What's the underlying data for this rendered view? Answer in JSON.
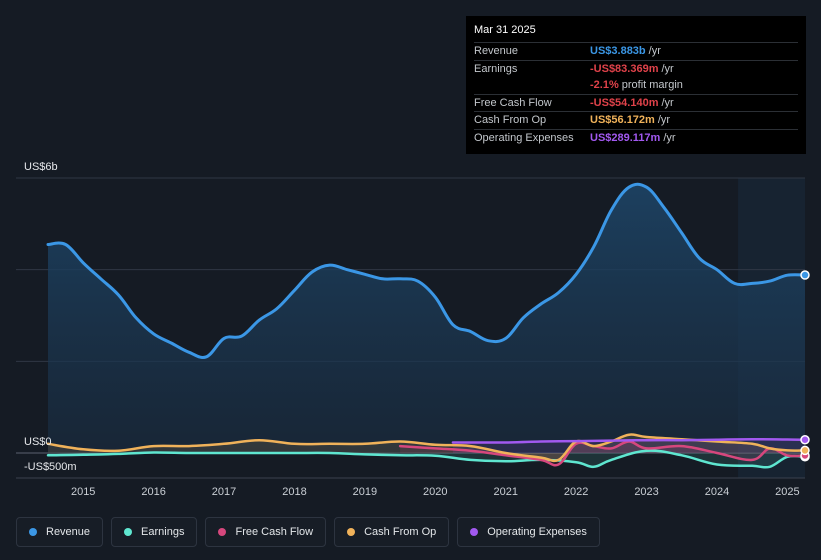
{
  "chart_data": {
    "type": "area",
    "y_top_label": "US$6b",
    "y_zero_label": "US$0",
    "y_bottom_label": "-US$500m",
    "ylim": [
      -500,
      6000
    ],
    "xlim": [
      2014.4,
      2025.25
    ],
    "x_ticks": [
      "2015",
      "2016",
      "2017",
      "2018",
      "2019",
      "2020",
      "2021",
      "2022",
      "2023",
      "2024",
      "2025"
    ],
    "grid": true,
    "legend_position": "bottom",
    "highlight_start": 2024.3,
    "series": [
      {
        "name": "Revenue",
        "color": "#3b97e6",
        "x": [
          2014.5,
          2014.75,
          2015,
          2015.25,
          2015.5,
          2015.75,
          2016,
          2016.25,
          2016.5,
          2016.75,
          2017,
          2017.25,
          2017.5,
          2017.75,
          2018,
          2018.25,
          2018.5,
          2018.75,
          2019,
          2019.25,
          2019.5,
          2019.75,
          2020,
          2020.25,
          2020.5,
          2020.75,
          2021,
          2021.25,
          2021.5,
          2021.75,
          2022,
          2022.25,
          2022.5,
          2022.75,
          2023,
          2023.25,
          2023.5,
          2023.75,
          2024,
          2024.25,
          2024.5,
          2024.75,
          2025,
          2025.25
        ],
        "y": [
          4550,
          4550,
          4150,
          3800,
          3450,
          2950,
          2600,
          2400,
          2200,
          2100,
          2500,
          2550,
          2900,
          3150,
          3550,
          3950,
          4100,
          4000,
          3900,
          3800,
          3800,
          3750,
          3400,
          2800,
          2650,
          2450,
          2500,
          2950,
          3250,
          3500,
          3900,
          4500,
          5300,
          5800,
          5800,
          5350,
          4800,
          4250,
          4000,
          3700,
          3700,
          3750,
          3880,
          3883
        ]
      },
      {
        "name": "Earnings",
        "color": "#5fe6d0",
        "x": [
          2014.5,
          2015,
          2015.5,
          2016,
          2016.5,
          2017,
          2017.5,
          2018,
          2018.5,
          2019,
          2019.5,
          2020,
          2020.5,
          2021,
          2021.5,
          2022,
          2022.25,
          2022.5,
          2023,
          2023.5,
          2024,
          2024.5,
          2024.75,
          2025,
          2025.25
        ],
        "y": [
          -50,
          -40,
          -20,
          10,
          0,
          0,
          0,
          0,
          0,
          -30,
          -50,
          -60,
          -150,
          -180,
          -150,
          -200,
          -300,
          -150,
          50,
          -50,
          -250,
          -280,
          -300,
          -83,
          -83
        ]
      },
      {
        "name": "Free Cash Flow",
        "color": "#d6477d",
        "x": [
          2019.5,
          2020,
          2020.5,
          2021,
          2021.5,
          2021.75,
          2022,
          2022.25,
          2022.5,
          2022.75,
          2023,
          2023.5,
          2024,
          2024.5,
          2024.75,
          2025,
          2025.25
        ],
        "y": [
          150,
          100,
          50,
          -50,
          -150,
          -250,
          200,
          150,
          100,
          250,
          100,
          150,
          0,
          -150,
          100,
          -54,
          -54
        ]
      },
      {
        "name": "Cash From Op",
        "color": "#f0b25a",
        "x": [
          2014.5,
          2015,
          2015.5,
          2016,
          2016.5,
          2017,
          2017.5,
          2018,
          2018.5,
          2019,
          2019.5,
          2020,
          2020.5,
          2021,
          2021.5,
          2021.75,
          2022,
          2022.25,
          2022.5,
          2022.75,
          2023,
          2023.5,
          2024,
          2024.5,
          2024.75,
          2025,
          2025.25
        ],
        "y": [
          200,
          80,
          50,
          150,
          150,
          200,
          280,
          200,
          200,
          200,
          250,
          180,
          150,
          0,
          -100,
          -150,
          250,
          150,
          250,
          400,
          350,
          300,
          250,
          200,
          100,
          56,
          56
        ]
      },
      {
        "name": "Operating Expenses",
        "color": "#a259f0",
        "x": [
          2020.25,
          2021,
          2021.5,
          2022,
          2022.5,
          2023,
          2023.5,
          2024,
          2024.5,
          2025,
          2025.25
        ],
        "y": [
          230,
          230,
          250,
          260,
          270,
          280,
          280,
          290,
          300,
          295,
          289
        ]
      }
    ]
  },
  "tooltip": {
    "date": "Mar 31 2025",
    "rows": [
      {
        "label": "Revenue",
        "value": "US$3.883b",
        "unit": "/yr",
        "color": "#3b97e6"
      },
      {
        "label": "Earnings",
        "value": "-US$83.369m",
        "unit": "/yr",
        "color": "#e0424a"
      },
      {
        "label": "",
        "value": "-2.1%",
        "unit": "profit margin",
        "color": "#e0424a"
      },
      {
        "label": "Free Cash Flow",
        "value": "-US$54.140m",
        "unit": "/yr",
        "color": "#e0424a"
      },
      {
        "label": "Cash From Op",
        "value": "US$56.172m",
        "unit": "/yr",
        "color": "#f0b25a"
      },
      {
        "label": "Operating Expenses",
        "value": "US$289.117m",
        "unit": "/yr",
        "color": "#a259f0"
      }
    ]
  },
  "legend": [
    {
      "label": "Revenue",
      "color": "#3b97e6"
    },
    {
      "label": "Earnings",
      "color": "#5fe6d0"
    },
    {
      "label": "Free Cash Flow",
      "color": "#d6477d"
    },
    {
      "label": "Cash From Op",
      "color": "#f0b25a"
    },
    {
      "label": "Operating Expenses",
      "color": "#a259f0"
    }
  ]
}
